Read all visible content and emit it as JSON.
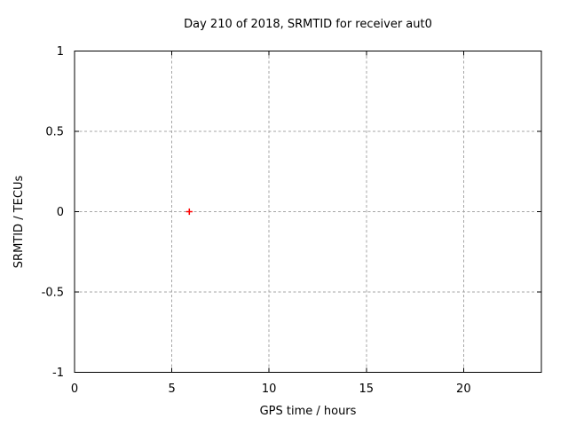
{
  "page": {
    "background": "#ffffff"
  },
  "chart_data": {
    "type": "scatter",
    "title": "Day 210 of 2018, SRMTID for receiver aut0",
    "xlabel": "GPS time / hours",
    "ylabel": "SRMTID / TECUs",
    "xlim": [
      0,
      24
    ],
    "ylim": [
      -1,
      1
    ],
    "xticks": [
      0,
      5,
      10,
      15,
      20
    ],
    "yticks": [
      -1,
      -0.5,
      0,
      0.5,
      1
    ],
    "grid": true,
    "grid_style": "dotted",
    "legend": "none",
    "series": [
      {
        "name": "SRMTID",
        "marker": "plus",
        "color": "#ff0000",
        "points": [
          {
            "x": 5.9,
            "y": 0.0
          }
        ]
      }
    ],
    "colors": {
      "background": "#ffffff",
      "border": "#000000",
      "grid": "#a6a6a6",
      "text": "#000000",
      "marker": "#ff0000"
    }
  }
}
